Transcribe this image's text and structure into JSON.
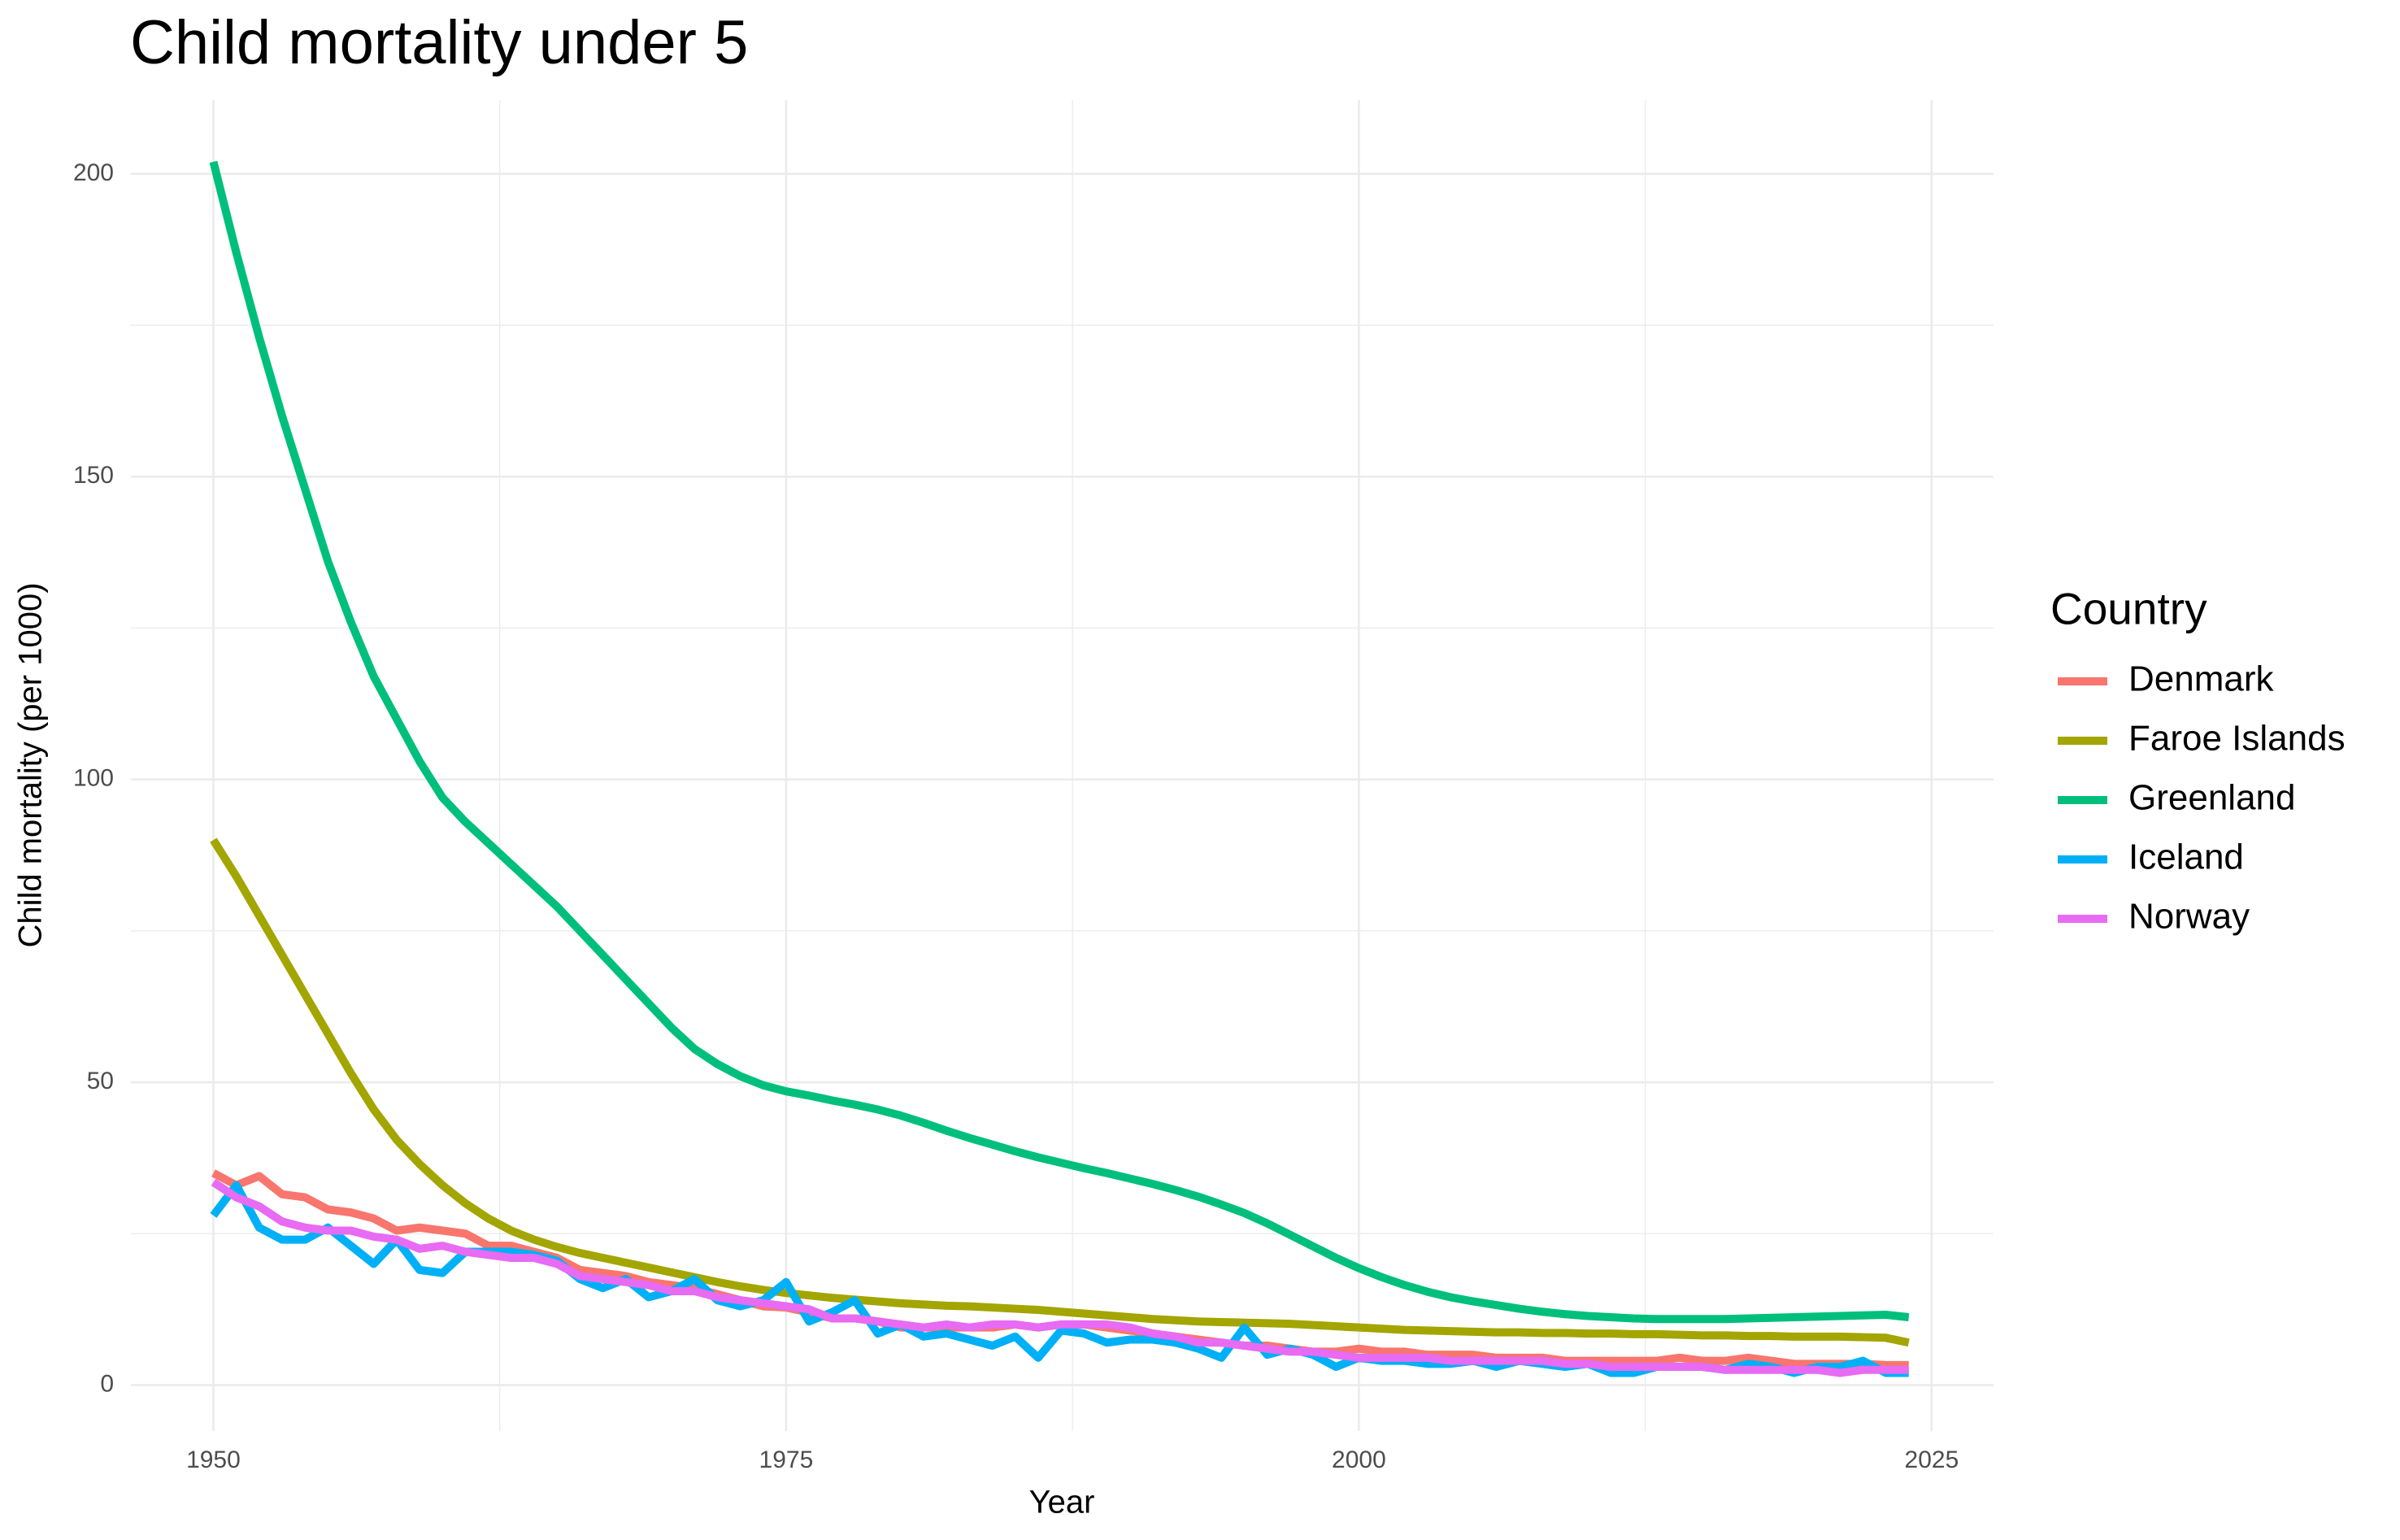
{
  "chart_data": {
    "type": "line",
    "title": "Child mortality under 5",
    "x_label": "Year",
    "y_label": "Child mortality (per 1000)",
    "legend_title": "Country",
    "legend_position": "right",
    "grid": true,
    "xlim": [
      1946.4,
      2027.7
    ],
    "ylim": [
      -7.6,
      212.2
    ],
    "xticks": [
      1950,
      1975,
      2000,
      2025
    ],
    "yticks": [
      0,
      50,
      100,
      150,
      200
    ],
    "xminor": [
      1962.5,
      1987.5,
      2012.5
    ],
    "yminor": [
      25,
      75,
      125,
      175
    ],
    "x": [
      1950,
      1951,
      1952,
      1953,
      1954,
      1955,
      1956,
      1957,
      1958,
      1959,
      1960,
      1961,
      1962,
      1963,
      1964,
      1965,
      1966,
      1967,
      1968,
      1969,
      1970,
      1971,
      1972,
      1973,
      1974,
      1975,
      1976,
      1977,
      1978,
      1979,
      1980,
      1981,
      1982,
      1983,
      1984,
      1985,
      1986,
      1987,
      1988,
      1989,
      1990,
      1991,
      1992,
      1993,
      1994,
      1995,
      1996,
      1997,
      1998,
      1999,
      2000,
      2001,
      2002,
      2003,
      2004,
      2005,
      2006,
      2007,
      2008,
      2009,
      2010,
      2011,
      2012,
      2013,
      2014,
      2015,
      2016,
      2017,
      2018,
      2019,
      2020,
      2021,
      2022,
      2023,
      2024
    ],
    "series": [
      {
        "name": "Denmark",
        "color": "#F8766D",
        "values": [
          35,
          33,
          34.5,
          31.5,
          31,
          29,
          28.5,
          27.5,
          25.5,
          26,
          25.5,
          25,
          23,
          23,
          22,
          21,
          19,
          18.5,
          18,
          17,
          16.5,
          16,
          15,
          14,
          13,
          12.8,
          12,
          11,
          11,
          10.5,
          9.5,
          9.5,
          9.5,
          9.5,
          9.5,
          10,
          9.5,
          10,
          10,
          9.5,
          9,
          8.5,
          8,
          7.5,
          7,
          6.5,
          6.5,
          6,
          5.5,
          5.5,
          6,
          5.5,
          5.5,
          5,
          5,
          5,
          4.5,
          4.5,
          4.5,
          4,
          4,
          4,
          4,
          4,
          4.5,
          4,
          4,
          4.5,
          4,
          3.5,
          3.5,
          3.5,
          3.5,
          3.3,
          3.3
        ]
      },
      {
        "name": "Faroe Islands",
        "color": "#A3A500",
        "values": [
          90,
          84,
          77.5,
          71,
          64.5,
          58,
          51.5,
          45.5,
          40.5,
          36.5,
          33,
          30,
          27.5,
          25.5,
          24,
          22.8,
          21.8,
          21,
          20.2,
          19.4,
          18.6,
          17.8,
          17,
          16.3,
          15.7,
          15.2,
          14.8,
          14.4,
          14.1,
          13.8,
          13.5,
          13.3,
          13.1,
          13,
          12.8,
          12.6,
          12.4,
          12.1,
          11.8,
          11.5,
          11.2,
          10.9,
          10.7,
          10.5,
          10.4,
          10.3,
          10.2,
          10.1,
          9.9,
          9.7,
          9.5,
          9.3,
          9.1,
          9,
          8.9,
          8.8,
          8.7,
          8.7,
          8.6,
          8.6,
          8.5,
          8.5,
          8.4,
          8.4,
          8.3,
          8.2,
          8.2,
          8.1,
          8.1,
          8,
          8,
          8,
          7.9,
          7.8,
          7
        ]
      },
      {
        "name": "Greenland",
        "color": "#00BF7D",
        "values": [
          202,
          187,
          173,
          160,
          148,
          136,
          126,
          117,
          110,
          103,
          97,
          93,
          89.5,
          86,
          82.5,
          79,
          75,
          71,
          67,
          63,
          59,
          55.5,
          53,
          51,
          49.5,
          48.5,
          47.8,
          47,
          46.3,
          45.5,
          44.5,
          43.3,
          42,
          40.8,
          39.7,
          38.6,
          37.6,
          36.7,
          35.8,
          35,
          34.1,
          33.2,
          32.2,
          31.1,
          29.8,
          28.4,
          26.7,
          24.8,
          22.9,
          21,
          19.3,
          17.8,
          16.5,
          15.4,
          14.5,
          13.8,
          13.2,
          12.6,
          12.1,
          11.7,
          11.4,
          11.2,
          11,
          10.9,
          10.9,
          10.9,
          10.9,
          11,
          11.1,
          11.2,
          11.3,
          11.4,
          11.5,
          11.6,
          11.2
        ]
      },
      {
        "name": "Iceland",
        "color": "#00B0F6",
        "values": [
          28,
          33,
          26,
          24,
          24,
          26,
          23,
          20,
          24,
          19,
          18.5,
          22,
          22,
          22,
          21.5,
          20.5,
          17.5,
          16,
          17.5,
          14.5,
          15.5,
          17.5,
          14,
          13,
          14,
          17,
          10.5,
          12,
          14,
          8.5,
          10,
          8,
          8.5,
          7.5,
          6.5,
          8,
          4.5,
          9,
          8.5,
          7,
          7.5,
          7.5,
          7,
          6,
          4.5,
          9.5,
          5,
          6,
          5,
          3,
          4.5,
          4,
          4,
          3.5,
          3.5,
          4,
          3,
          4,
          3.5,
          3,
          3.5,
          2,
          2,
          3,
          3,
          3,
          2.5,
          3.5,
          3,
          2,
          3,
          3,
          4,
          2,
          2
        ]
      },
      {
        "name": "Norway",
        "color": "#E76BF3",
        "values": [
          33.5,
          31,
          29.5,
          27,
          26,
          25.5,
          25.5,
          24.5,
          24,
          22.5,
          23,
          22,
          21.5,
          21,
          21,
          20,
          18,
          17.5,
          17,
          16.5,
          15.5,
          15.5,
          14.5,
          14,
          13.5,
          13,
          12.5,
          11,
          11,
          10.5,
          10,
          9.5,
          10,
          9.5,
          10,
          10,
          9.5,
          10,
          10,
          10,
          9.5,
          8.5,
          8,
          7,
          7,
          6.5,
          6,
          5.5,
          5.5,
          5,
          4.5,
          4.5,
          4.5,
          4.5,
          4,
          4,
          4,
          4,
          4,
          3.5,
          3.5,
          3,
          3,
          3,
          3,
          3,
          2.5,
          2.5,
          2.5,
          2.5,
          2.5,
          2,
          2.5,
          2.5,
          2.5
        ]
      }
    ]
  }
}
